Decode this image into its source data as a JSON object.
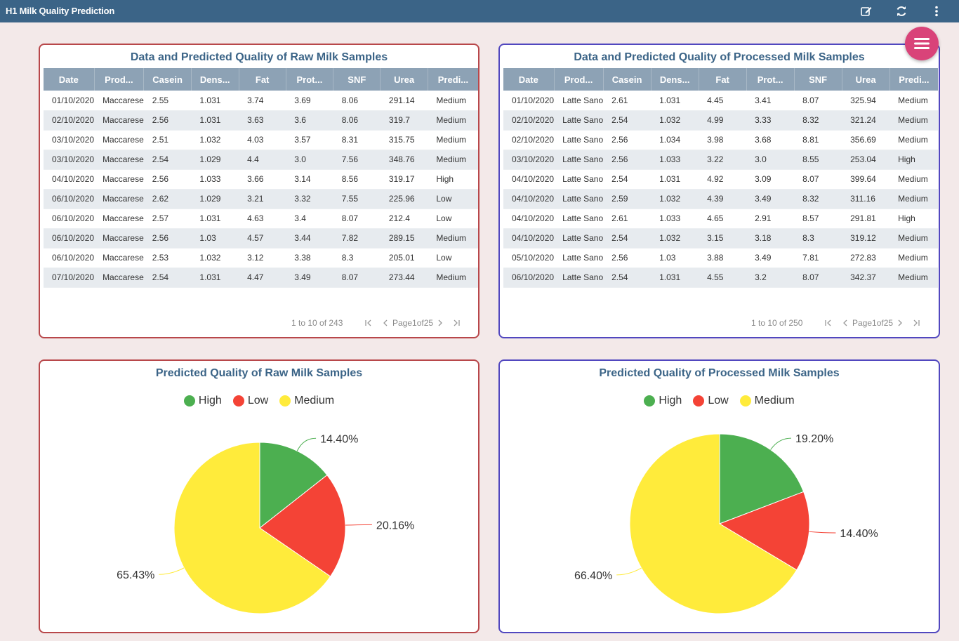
{
  "app": {
    "title": "H1 Milk Quality Prediction"
  },
  "toolbar": {
    "icons": [
      "edit-icon",
      "refresh-icon",
      "more-vertical-icon"
    ]
  },
  "colors": {
    "high": "#4caf50",
    "low": "#f44336",
    "medium": "#ffeb3b",
    "header_bg": "#3b6487",
    "fab": "#d94379"
  },
  "raw_table": {
    "title": "Data and Predicted Quality of Raw Milk Samples",
    "columns": [
      "Date",
      "Prod...",
      "Casein",
      "Dens...",
      "Fat",
      "Prot...",
      "SNF",
      "Urea",
      "Predi..."
    ],
    "rows": [
      [
        "01/10/2020",
        "Maccarese",
        "2.55",
        "1.031",
        "3.74",
        "3.69",
        "8.06",
        "291.14",
        "Medium"
      ],
      [
        "02/10/2020",
        "Maccarese",
        "2.56",
        "1.031",
        "3.63",
        "3.6",
        "8.06",
        "319.7",
        "Medium"
      ],
      [
        "03/10/2020",
        "Maccarese",
        "2.51",
        "1.032",
        "4.03",
        "3.57",
        "8.31",
        "315.75",
        "Medium"
      ],
      [
        "03/10/2020",
        "Maccarese",
        "2.54",
        "1.029",
        "4.4",
        "3.0",
        "7.56",
        "348.76",
        "Medium"
      ],
      [
        "04/10/2020",
        "Maccarese",
        "2.56",
        "1.033",
        "3.66",
        "3.14",
        "8.56",
        "319.17",
        "High"
      ],
      [
        "06/10/2020",
        "Maccarese",
        "2.62",
        "1.029",
        "3.21",
        "3.32",
        "7.55",
        "225.96",
        "Low"
      ],
      [
        "06/10/2020",
        "Maccarese",
        "2.57",
        "1.031",
        "4.63",
        "3.4",
        "8.07",
        "212.4",
        "Low"
      ],
      [
        "06/10/2020",
        "Maccarese",
        "2.56",
        "1.03",
        "4.57",
        "3.44",
        "7.82",
        "289.15",
        "Medium"
      ],
      [
        "06/10/2020",
        "Maccarese",
        "2.53",
        "1.032",
        "3.12",
        "3.38",
        "8.3",
        "205.01",
        "Low"
      ],
      [
        "07/10/2020",
        "Maccarese",
        "2.54",
        "1.031",
        "4.47",
        "3.49",
        "8.07",
        "273.44",
        "Medium"
      ]
    ],
    "pager": {
      "range": "1 to 10 of 243",
      "page_label": "Page1of25"
    }
  },
  "proc_table": {
    "title": "Data and Predicted Quality of Processed Milk Samples",
    "columns": [
      "Date",
      "Prod...",
      "Casein",
      "Dens...",
      "Fat",
      "Prot...",
      "SNF",
      "Urea",
      "Predi..."
    ],
    "rows": [
      [
        "01/10/2020",
        "Latte Sano",
        "2.61",
        "1.031",
        "4.45",
        "3.41",
        "8.07",
        "325.94",
        "Medium"
      ],
      [
        "02/10/2020",
        "Latte Sano",
        "2.54",
        "1.032",
        "4.99",
        "3.33",
        "8.32",
        "321.24",
        "Medium"
      ],
      [
        "02/10/2020",
        "Latte Sano",
        "2.56",
        "1.034",
        "3.98",
        "3.68",
        "8.81",
        "356.69",
        "Medium"
      ],
      [
        "03/10/2020",
        "Latte Sano",
        "2.56",
        "1.033",
        "3.22",
        "3.0",
        "8.55",
        "253.04",
        "High"
      ],
      [
        "04/10/2020",
        "Latte Sano",
        "2.54",
        "1.031",
        "4.92",
        "3.09",
        "8.07",
        "399.64",
        "Medium"
      ],
      [
        "04/10/2020",
        "Latte Sano",
        "2.59",
        "1.032",
        "4.39",
        "3.49",
        "8.32",
        "311.16",
        "Medium"
      ],
      [
        "04/10/2020",
        "Latte Sano",
        "2.61",
        "1.033",
        "4.65",
        "2.91",
        "8.57",
        "291.81",
        "High"
      ],
      [
        "04/10/2020",
        "Latte Sano",
        "2.54",
        "1.032",
        "3.15",
        "3.18",
        "8.3",
        "319.12",
        "Medium"
      ],
      [
        "05/10/2020",
        "Latte Sano",
        "2.56",
        "1.03",
        "3.88",
        "3.49",
        "7.81",
        "272.83",
        "Medium"
      ],
      [
        "06/10/2020",
        "Latte Sano",
        "2.54",
        "1.031",
        "4.55",
        "3.2",
        "8.07",
        "342.37",
        "Medium"
      ]
    ],
    "pager": {
      "range": "1 to 10 of 250",
      "page_label": "Page1of25"
    }
  },
  "raw_pie": {
    "title": "Predicted Quality of Raw Milk Samples",
    "legend": [
      "High",
      "Low",
      "Medium"
    ]
  },
  "proc_pie": {
    "title": "Predicted Quality of Processed Milk Samples",
    "legend": [
      "High",
      "Low",
      "Medium"
    ]
  },
  "chart_data": [
    {
      "type": "pie",
      "title": "Predicted Quality of Raw Milk Samples",
      "categories": [
        "High",
        "Low",
        "Medium"
      ],
      "values": [
        14.4,
        20.16,
        65.43
      ],
      "labels": [
        "14.40%",
        "20.16%",
        "65.43%"
      ],
      "legend_position": "top"
    },
    {
      "type": "pie",
      "title": "Predicted Quality of Processed Milk Samples",
      "categories": [
        "High",
        "Low",
        "Medium"
      ],
      "values": [
        19.2,
        14.4,
        66.4
      ],
      "labels": [
        "19.20%",
        "14.40%",
        "66.40%"
      ],
      "legend_position": "top"
    }
  ]
}
